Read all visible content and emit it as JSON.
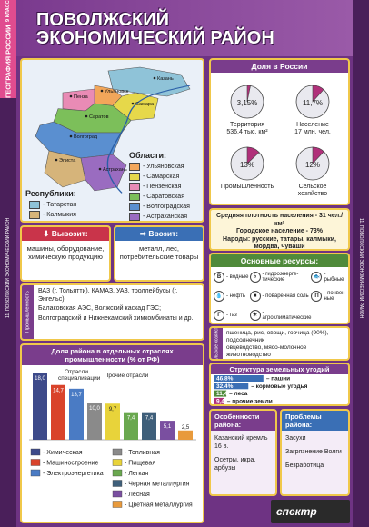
{
  "sidebar": {
    "subject": "ГЕОГРАФИЯ РОССИИ",
    "grade": "9 КЛАСС",
    "topic": "11. ПОВОЛЖСКИЙ ЭКОНОМИЧЕСКИЙ РАЙОН"
  },
  "header": {
    "title_line1": "ПОВОЛЖСКИЙ",
    "title_line2": "ЭКОНОМИЧЕСКИЙ РАЙОН"
  },
  "map": {
    "cities": [
      "Казань",
      "Ульяновск",
      "Пенза",
      "Самара",
      "Саратов",
      "Волгоград",
      "Элиста",
      "Астрахань"
    ],
    "oblasti_title": "Области:",
    "oblasti": [
      {
        "name": "- Ульяновская",
        "color": "#f2a65a"
      },
      {
        "name": "- Самарская",
        "color": "#e6d84a"
      },
      {
        "name": "- Пензенская",
        "color": "#e98bb5"
      },
      {
        "name": "- Саратовская",
        "color": "#7cbf5a"
      },
      {
        "name": "- Волгоградская",
        "color": "#5a8fd0"
      },
      {
        "name": "- Астраханская",
        "color": "#9a6cc0"
      }
    ],
    "republics_title": "Республики:",
    "republics": [
      {
        "name": "- Татарстан",
        "color": "#8fc3d8"
      },
      {
        "name": "- Калмыкия",
        "color": "#d6b47a"
      }
    ]
  },
  "share": {
    "title": "Доля в России",
    "items": [
      {
        "value": 3.15,
        "label": "3,15%",
        "caption": [
          "Территория",
          "536,4 тыс. км²"
        ]
      },
      {
        "value": 11.7,
        "label": "11,7%",
        "caption": [
          "Население",
          "17 млн. чел."
        ]
      },
      {
        "value": 13,
        "label": "13%",
        "caption": [
          "Промышленность"
        ]
      },
      {
        "value": 12,
        "label": "12%",
        "caption": [
          "Сельское",
          "хозяйство"
        ]
      }
    ]
  },
  "density": {
    "lines": [
      "Средняя плотность населения - 31 чел./км²",
      "Городское население - 73%",
      "Народы: русские, татары, калмыки, мордва, чуваши"
    ]
  },
  "export": {
    "title": "Вывозит:",
    "text": "машины, оборудование, химическую продукцию"
  },
  "import": {
    "title": "Ввозит:",
    "text": "металл, лес, потребительские товары"
  },
  "industry": {
    "label": "Промышленность",
    "items": [
      "ВАЗ (г. Тольятти), КАМАЗ, УАЗ, троллейбусы (г. Энгельс);",
      "Балаковская АЭС, Волжский каскад ГЭС;",
      "Волгоградский и Нижнекамский химкомбинаты и др."
    ]
  },
  "resources": {
    "title": "Основные ресурсы:",
    "items": [
      {
        "icon": "В",
        "text": "- водные"
      },
      {
        "text": "- гидроэнерге-тические"
      },
      {
        "text": "- рыбные"
      },
      {
        "text": "- нефть"
      },
      {
        "text": "- поваренная соль"
      },
      {
        "icon": "П",
        "text": "- почвен-ные"
      },
      {
        "icon": "Г",
        "text": "- газ"
      },
      {
        "text": "- агроклиматические"
      }
    ]
  },
  "agriculture": {
    "label": "Сельское хозяйство",
    "items": [
      "пшеница, рис, овощи, горчица (90%), подсолнечник",
      "овцеводство, мясо-молочное животноводство"
    ]
  },
  "land": {
    "title": "Структура земельных угодий",
    "items": [
      {
        "value": 46.8,
        "label": "46,8%",
        "name": "– пашни"
      },
      {
        "value": 32.4,
        "label": "32,4%",
        "name": "– кормовые угодья"
      },
      {
        "value": 11.4,
        "label": "11,4%",
        "name": "– леса"
      },
      {
        "value": 9.4,
        "label": "9,4%",
        "name": "– прочие земли"
      }
    ]
  },
  "features": {
    "title": "Особенности района:",
    "items": [
      "Казанский кремль 16 в.",
      "Осетры, икра, арбузы"
    ]
  },
  "problems": {
    "title": "Проблемы района:",
    "items": [
      "Засухи",
      "Загрязнение Волги",
      "Безработица"
    ]
  },
  "industry_chart": {
    "title": "Доля района в отдельных отраслях промышленности (% от РФ)",
    "group1": "Отрасли специализации",
    "group2": "Прочие отрасли",
    "bars": [
      {
        "value": 18.0,
        "label": "18,0",
        "name": "- Химическая",
        "color": "#3d4a8a"
      },
      {
        "value": 14.7,
        "label": "14,7",
        "name": "- Машиностроение",
        "color": "#d9432b"
      },
      {
        "value": 13.7,
        "label": "13,7",
        "name": "- Электроэнергетика",
        "color": "#4a7bc4"
      },
      {
        "value": 10.0,
        "label": "10,0",
        "name": "- Топливная",
        "color": "#8a8a8a"
      },
      {
        "value": 9.7,
        "label": "9,7",
        "name": "- Пищевая",
        "color": "#e8d33a"
      },
      {
        "value": 7.4,
        "label": "7,4",
        "name": "- Легкая",
        "color": "#6aa84f"
      },
      {
        "value": 7.4,
        "label": "7,4",
        "name": "- Черная металлургия",
        "color": "#3f5f7a"
      },
      {
        "value": 5.1,
        "label": "5,1",
        "name": "- Лесная",
        "color": "#7a4fa0"
      },
      {
        "value": 2.5,
        "label": "2,5",
        "name": "- Цветная металлургия",
        "color": "#e89a3c"
      }
    ]
  },
  "footer": {
    "brand": "спектр"
  }
}
